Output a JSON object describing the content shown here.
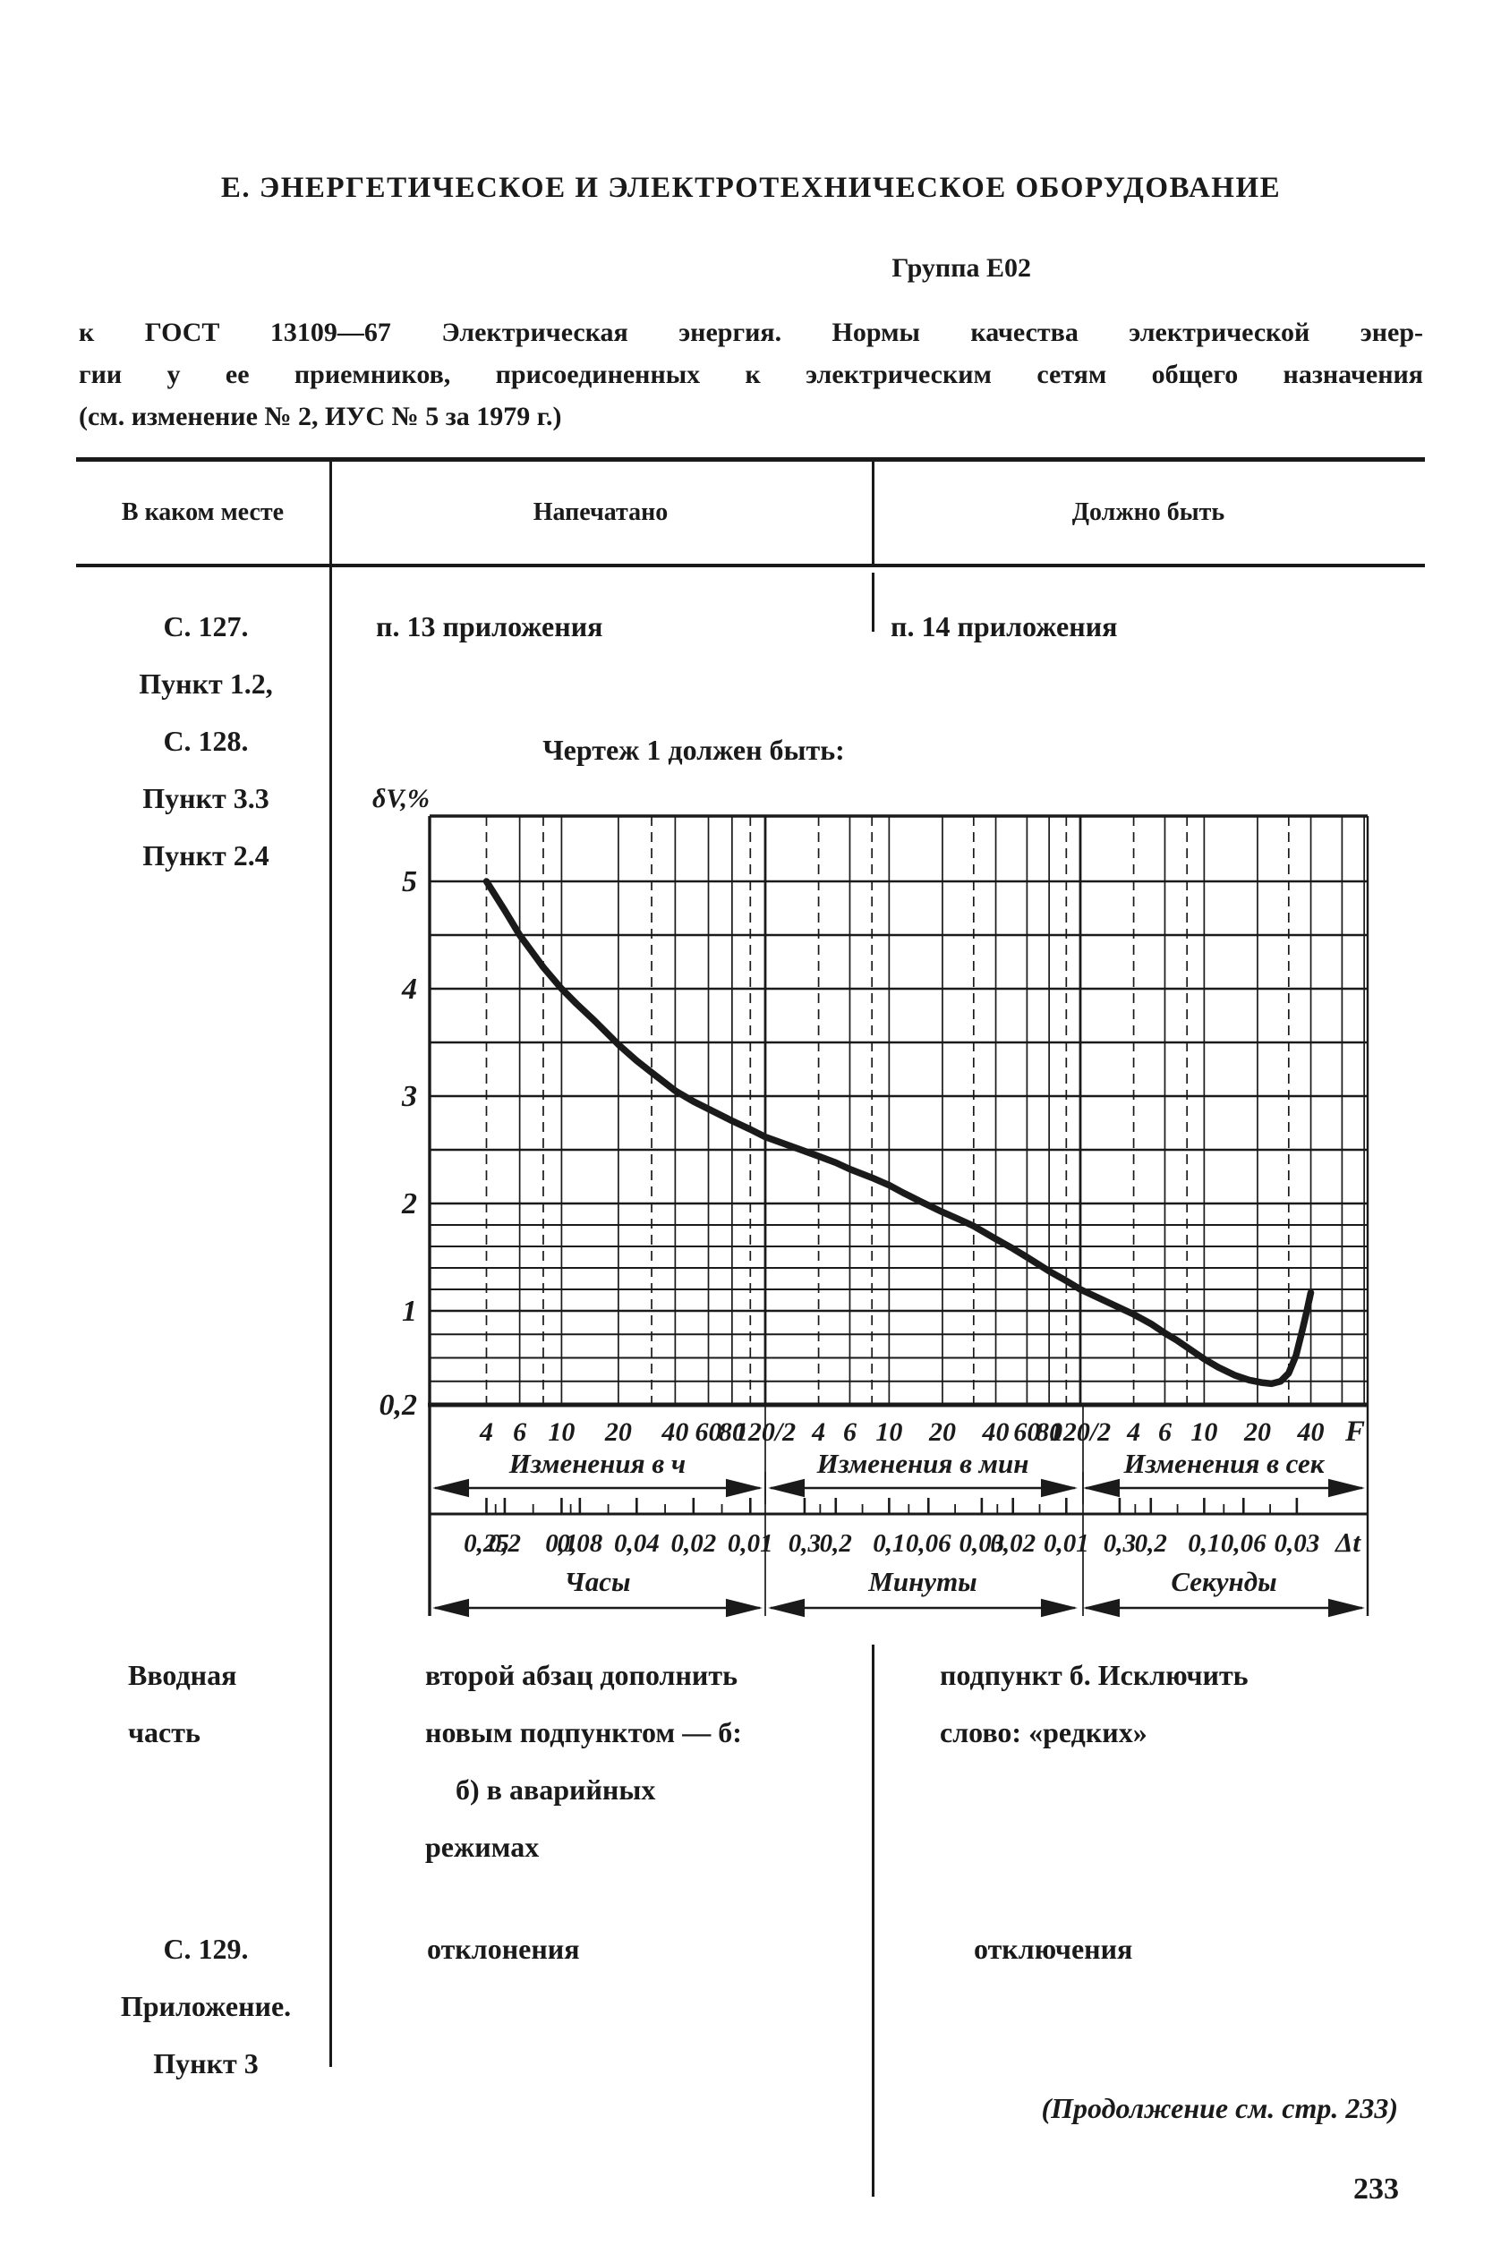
{
  "colors": {
    "paper": "#ffffff",
    "ink": "#1a1a1a"
  },
  "page": {
    "title": "Е. ЭНЕРГЕТИЧЕСКОЕ И ЭЛЕКТРОТЕХНИЧЕСКОЕ ОБОРУДОВАНИЕ",
    "group": "Группа Е02",
    "intro_lines": [
      "к ГОСТ 13109—67 Электрическая энергия. Нормы качества электрической энер-",
      "гии у ее приемников, присоединенных к электрическим сетям общего назначения",
      "(см. изменение № 2, ИУС № 5 за 1979 г.)"
    ],
    "footer_note": "(Продолжение см. стр. 233)",
    "page_number": "233"
  },
  "table": {
    "headers": [
      "В каком месте",
      "Напечатано",
      "Должно быть"
    ],
    "rows": [
      {
        "place": [
          "С. 127.",
          "Пункт 1.2,",
          "С. 128.",
          "Пункт 3.3",
          "Пункт 2.4"
        ],
        "printed": [
          "п. 13 приложения"
        ],
        "should_be": [
          "п. 14 приложения"
        ],
        "note": "Чертеж 1 должен быть:"
      },
      {
        "place": [
          "Вводная",
          "часть"
        ],
        "printed": [
          "второй абзац дополнить",
          "новым подпунктом — б:",
          "б) в аварийных",
          "режимах"
        ],
        "should_be": [
          "подпункт б. Исключить",
          "слово: «редких»"
        ]
      },
      {
        "place": [
          "С. 129.",
          "Приложение.",
          "Пункт 3"
        ],
        "printed": [
          "отклонения"
        ],
        "should_be": [
          "отключения"
        ]
      }
    ]
  },
  "chart_data": {
    "type": "line",
    "title": "Чертеж 1",
    "ylabel": "δV,%",
    "y_ticks": [
      {
        "label": "5",
        "v": 5
      },
      {
        "label": "4",
        "v": 4
      },
      {
        "label": "3",
        "v": 3
      },
      {
        "label": "2",
        "v": 2
      },
      {
        "label": "1",
        "v": 1
      },
      {
        "label": "0,2",
        "v": 0.2
      }
    ],
    "y_gridlines": [
      5,
      4.5,
      4,
      3.5,
      3,
      2.5,
      2,
      1.8,
      1.6,
      1.4,
      1.2,
      1,
      0.8,
      0.6,
      0.4,
      0.2
    ],
    "x_minor_f": [
      4,
      6,
      8,
      10,
      20,
      30,
      40,
      60,
      80,
      100,
      120
    ],
    "x_sections": [
      {
        "label": "Изменения в ч",
        "unit": "Часы",
        "ticks": [
          {
            "label": "4",
            "f": 4
          },
          {
            "label": "6",
            "f": 6
          },
          {
            "label": "10",
            "f": 10
          },
          {
            "label": "20",
            "f": 20
          },
          {
            "label": "40",
            "f": 40
          },
          {
            "label": "60",
            "f": 60
          },
          {
            "label": "80",
            "f": 80
          },
          {
            "label": "120/2",
            "f": 120
          }
        ],
        "dt_labels": [
          "0,25",
          "0,2",
          "0,1",
          "0,08",
          "0,04",
          "0,02",
          "0,01"
        ]
      },
      {
        "label": "Изменения в мин",
        "unit": "Минуты",
        "ticks": [
          {
            "label": "4",
            "f": 4
          },
          {
            "label": "6",
            "f": 6
          },
          {
            "label": "10",
            "f": 10
          },
          {
            "label": "20",
            "f": 20
          },
          {
            "label": "40",
            "f": 40
          },
          {
            "label": "60",
            "f": 60
          },
          {
            "label": "80",
            "f": 80
          },
          {
            "label": "120/2",
            "f": 120
          }
        ],
        "dt_labels": [
          "0,3",
          "0,2",
          "0,1",
          "0,06",
          "0,03",
          "0,02",
          "0,01"
        ]
      },
      {
        "label": "Изменения в сек",
        "unit": "Секунды",
        "ticks": [
          {
            "label": "4",
            "f": 4
          },
          {
            "label": "6",
            "f": 6
          },
          {
            "label": "10",
            "f": 10
          },
          {
            "label": "20",
            "f": 20
          },
          {
            "label": "40",
            "f": 40
          }
        ],
        "dt_labels": [
          "0,3",
          "0,2",
          "0,1",
          "0,06",
          "0,03"
        ]
      }
    ],
    "x_end_label": "F",
    "dt_label": "Δt",
    "curve": [
      [
        0,
        4,
        5.0
      ],
      [
        0,
        5,
        4.73
      ],
      [
        0,
        6,
        4.5
      ],
      [
        0,
        7,
        4.34
      ],
      [
        0,
        8,
        4.2
      ],
      [
        0,
        10,
        4.0
      ],
      [
        0,
        12,
        3.86
      ],
      [
        0,
        15,
        3.7
      ],
      [
        0,
        20,
        3.48
      ],
      [
        0,
        25,
        3.33
      ],
      [
        0,
        30,
        3.22
      ],
      [
        0,
        40,
        3.05
      ],
      [
        0,
        50,
        2.95
      ],
      [
        0,
        60,
        2.88
      ],
      [
        0,
        80,
        2.77
      ],
      [
        0,
        100,
        2.69
      ],
      [
        0,
        120,
        2.62
      ],
      [
        1,
        4,
        2.44
      ],
      [
        1,
        5,
        2.38
      ],
      [
        1,
        6,
        2.32
      ],
      [
        1,
        8,
        2.24
      ],
      [
        1,
        10,
        2.17
      ],
      [
        1,
        12,
        2.1
      ],
      [
        1,
        15,
        2.02
      ],
      [
        1,
        20,
        1.92
      ],
      [
        1,
        25,
        1.85
      ],
      [
        1,
        30,
        1.79
      ],
      [
        1,
        40,
        1.67
      ],
      [
        1,
        50,
        1.58
      ],
      [
        1,
        60,
        1.5
      ],
      [
        1,
        80,
        1.37
      ],
      [
        1,
        100,
        1.28
      ],
      [
        1,
        120,
        1.2
      ],
      [
        2,
        4,
        0.97
      ],
      [
        2,
        5,
        0.89
      ],
      [
        2,
        6,
        0.81
      ],
      [
        2,
        7,
        0.75
      ],
      [
        2,
        8,
        0.69
      ],
      [
        2,
        10,
        0.59
      ],
      [
        2,
        12,
        0.52
      ],
      [
        2,
        15,
        0.45
      ],
      [
        2,
        18,
        0.41
      ],
      [
        2,
        21,
        0.39
      ],
      [
        2,
        24,
        0.38
      ],
      [
        2,
        27,
        0.4
      ],
      [
        2,
        30,
        0.47
      ],
      [
        2,
        33,
        0.62
      ],
      [
        2,
        36,
        0.85
      ],
      [
        2,
        38,
        1.0
      ],
      [
        2,
        40,
        1.17
      ]
    ]
  }
}
